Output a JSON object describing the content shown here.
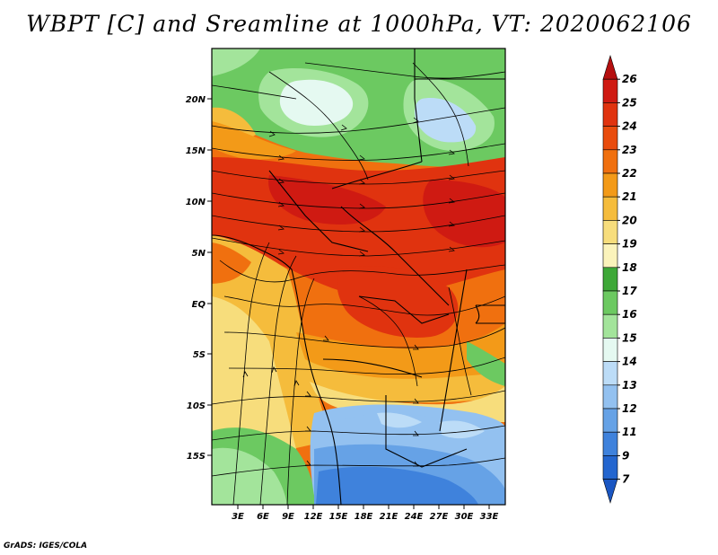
{
  "title": "WBPT [C] and Sreamline at 1000hPa, VT: 2020062106",
  "credit": "GrADS: IGES/COLA",
  "map": {
    "lat_labels": [
      "20N",
      "15N",
      "10N",
      "5N",
      "EQ",
      "5S",
      "10S",
      "15S"
    ],
    "lon_labels": [
      "3E",
      "6E",
      "9E",
      "12E",
      "15E",
      "18E",
      "21E",
      "24E",
      "27E",
      "30E",
      "33E"
    ]
  },
  "colorbar": {
    "labels": [
      "26",
      "25",
      "24",
      "23",
      "22",
      "21",
      "20",
      "19",
      "18",
      "17",
      "16",
      "15",
      "14",
      "13",
      "12",
      "11",
      "9",
      "7"
    ],
    "colors": [
      "#b50f0f",
      "#cf1a12",
      "#e0330f",
      "#e94c0d",
      "#f0700f",
      "#f39a18",
      "#f5bc3c",
      "#f7dd7c",
      "#fbf3bb",
      "#3ea838",
      "#6cc961",
      "#a3e49b",
      "#e5f9f1",
      "#bcdcf7",
      "#93c1f0",
      "#66a2e6",
      "#3f82dc",
      "#2466cf",
      "#1a56c2"
    ]
  }
}
